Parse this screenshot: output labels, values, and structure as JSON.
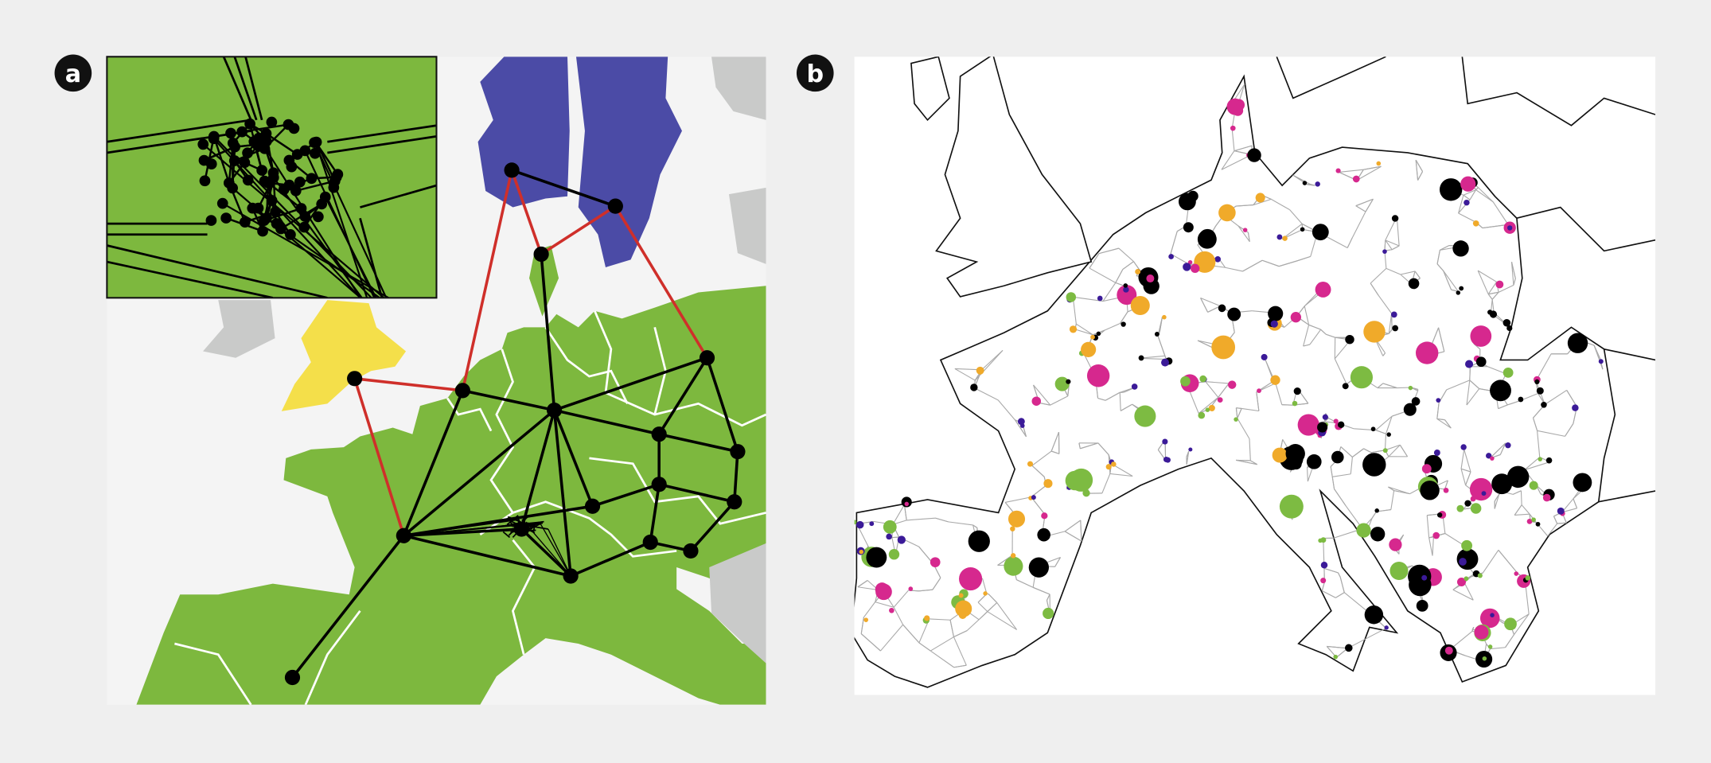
{
  "panels": {
    "a": {
      "label": "a"
    },
    "b": {
      "label": "b"
    }
  },
  "colors": {
    "background": "#efefef",
    "land_main": "#7db83e",
    "land_nordic": "#4b4ba6",
    "land_uk": "#f4df4a",
    "land_other": "#c9cac9",
    "link_internal": "#000000",
    "link_interconnector": "#cf2f2a",
    "grid_lines": "#a9a9a9",
    "node_categories": [
      "#000000",
      "#d6288e",
      "#f0aa2a",
      "#7dbb42",
      "#3b1a98"
    ]
  }
}
